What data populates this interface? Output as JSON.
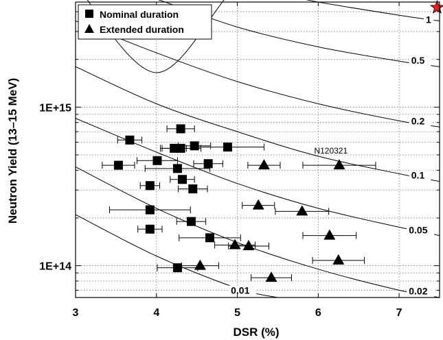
{
  "chart_data": {
    "type": "scatter",
    "xlabel": "DSR (%)",
    "ylabel": "Neutron Yield (13–15 MeV)",
    "xlim": [
      3,
      7.5
    ],
    "ylim": [
      63000000000000.0,
      4600000000000000.0
    ],
    "yscale": "log",
    "grid": true,
    "legend_position": "top-left",
    "x_ticks": [
      {
        "value": 3,
        "label": "3"
      },
      {
        "value": 4,
        "label": "4"
      },
      {
        "value": 5,
        "label": "5"
      },
      {
        "value": 6,
        "label": "6"
      },
      {
        "value": 7,
        "label": "7"
      }
    ],
    "y_ticks": [
      {
        "value": 100000000000000.0,
        "label": "1E+14"
      },
      {
        "value": 1000000000000000.0,
        "label": "1E+15"
      }
    ],
    "series": [
      {
        "name": "Nominal duration",
        "marker": "square",
        "points": [
          {
            "x": 3.67,
            "y": 620000000000000.0,
            "xerr": 0.15
          },
          {
            "x": 4.3,
            "y": 730000000000000.0,
            "xerr": 0.17
          },
          {
            "x": 4.22,
            "y": 550000000000000.0,
            "xerr": 0.15
          },
          {
            "x": 4.3,
            "y": 550000000000000.0,
            "xerr": 0.25
          },
          {
            "x": 4.47,
            "y": 570000000000000.0,
            "xerr": 0.2
          },
          {
            "x": 4.88,
            "y": 560000000000000.0,
            "xerr": 0.45
          },
          {
            "x": 3.53,
            "y": 430000000000000.0,
            "xerr": 0.2
          },
          {
            "x": 4.01,
            "y": 460000000000000.0,
            "xerr": 0.25
          },
          {
            "x": 4.26,
            "y": 410000000000000.0,
            "xerr": 0.4
          },
          {
            "x": 4.64,
            "y": 440000000000000.0,
            "xerr": 0.18
          },
          {
            "x": 3.92,
            "y": 320000000000000.0,
            "xerr": 0.12
          },
          {
            "x": 4.32,
            "y": 350000000000000.0,
            "xerr": 0.15
          },
          {
            "x": 4.45,
            "y": 305000000000000.0,
            "xerr": 0.18
          },
          {
            "x": 3.92,
            "y": 225000000000000.0,
            "xerr": 0.5
          },
          {
            "x": 4.43,
            "y": 190000000000000.0,
            "xerr": 0.18
          },
          {
            "x": 3.92,
            "y": 170000000000000.0,
            "xerr": 0.15
          },
          {
            "x": 4.66,
            "y": 150000000000000.0,
            "xerr": 0.38
          },
          {
            "x": 4.26,
            "y": 97000000000000.0,
            "xerr": 0.25
          }
        ]
      },
      {
        "name": "Extended duration",
        "marker": "triangle",
        "points": [
          {
            "x": 5.33,
            "y": 430000000000000.0,
            "xerr": 0.2
          },
          {
            "x": 6.26,
            "y": 430000000000000.0,
            "xerr": 0.45
          },
          {
            "x": 5.26,
            "y": 240000000000000.0,
            "xerr": 0.2
          },
          {
            "x": 5.8,
            "y": 220000000000000.0,
            "xerr": 0.33
          },
          {
            "x": 6.14,
            "y": 155000000000000.0,
            "xerr": 0.33
          },
          {
            "x": 4.97,
            "y": 135000000000000.0,
            "xerr": 0.25
          },
          {
            "x": 5.14,
            "y": 133000000000000.0,
            "xerr": 0.25
          },
          {
            "x": 6.25,
            "y": 108000000000000.0,
            "xerr": 0.32
          },
          {
            "x": 4.54,
            "y": 100000000000000.0,
            "xerr": 0.23
          },
          {
            "x": 5.42,
            "y": 84000000000000.0,
            "xerr": 0.25
          }
        ]
      }
    ],
    "contours": [
      {
        "label": "1",
        "points": [
          [
            3.0,
            6000000000000000.0
          ],
          [
            4.0,
            1650000000000000.0
          ],
          [
            5.0,
            5800000000000000.0
          ],
          [
            5.5,
            5200000000000000.0
          ],
          [
            6.0,
            4600000000000000.0
          ],
          [
            7.0,
            3800000000000000.0
          ],
          [
            7.5,
            3500000000000000.0
          ]
        ]
      },
      {
        "label": "0.5",
        "points": [
          [
            3.0,
            7000000000000000.0
          ],
          [
            4.0,
            4800000000000000.0
          ],
          [
            5.0,
            3200000000000000.0
          ],
          [
            6.0,
            2400000000000000.0
          ],
          [
            7.0,
            1950000000000000.0
          ],
          [
            7.5,
            1800000000000000.0
          ]
        ]
      },
      {
        "label": "0.2",
        "points": [
          [
            3.0,
            3500000000000000.0
          ],
          [
            4.0,
            2200000000000000.0
          ],
          [
            5.0,
            1450000000000000.0
          ],
          [
            6.0,
            1050000000000000.0
          ],
          [
            7.0,
            820000000000000.0
          ],
          [
            7.5,
            750000000000000.0
          ]
        ]
      },
      {
        "label": "0.1",
        "points": [
          [
            3.0,
            1800000000000000.0
          ],
          [
            4.0,
            1050000000000000.0
          ],
          [
            5.0,
            700000000000000.0
          ],
          [
            6.0,
            490000000000000.0
          ],
          [
            7.0,
            380000000000000.0
          ],
          [
            7.5,
            340000000000000.0
          ]
        ]
      },
      {
        "label": "0.05",
        "points": [
          [
            3.0,
            850000000000000.0
          ],
          [
            4.0,
            520000000000000.0
          ],
          [
            5.0,
            330000000000000.0
          ],
          [
            6.0,
            230000000000000.0
          ],
          [
            7.0,
            175000000000000.0
          ],
          [
            7.5,
            155000000000000.0
          ]
        ]
      },
      {
        "label": "0.02",
        "points": [
          [
            3.0,
            420000000000000.0
          ],
          [
            4.0,
            230000000000000.0
          ],
          [
            5.0,
            140000000000000.0
          ],
          [
            6.0,
            95000000000000.0
          ],
          [
            7.0,
            70000000000000.0
          ],
          [
            7.5,
            63000000000000.0
          ]
        ]
      },
      {
        "label": "0.01",
        "points": [
          [
            3.0,
            210000000000000.0
          ],
          [
            4.0,
            115000000000000.0
          ],
          [
            5.0,
            72000000000000.0
          ],
          [
            5.5,
            63000000000000.0
          ]
        ]
      }
    ],
    "contour_labels": [
      {
        "label": "1",
        "x": 7.33,
        "y": 3400000000000000.0
      },
      {
        "label": "0.5",
        "x": 7.15,
        "y": 1880000000000000.0
      },
      {
        "label": "0.2",
        "x": 7.15,
        "y": 780000000000000.0
      },
      {
        "label": "0.1",
        "x": 7.15,
        "y": 355000000000000.0
      },
      {
        "label": "0.05",
        "x": 7.12,
        "y": 160000000000000.0
      },
      {
        "label": "0.02",
        "x": 7.12,
        "y": 66000000000000.0
      },
      {
        "label": "0.01",
        "x": 4.92,
        "y": 66500000000000.0
      }
    ],
    "annotations": [
      {
        "text": "N120321",
        "x": 5.95,
        "y": 510000000000000.0
      }
    ],
    "highlight_marker": {
      "shape": "star",
      "x": 7.47,
      "y": 4250000000000000.0,
      "color": "#e8201c"
    },
    "colors": {
      "series": "#000000",
      "grid": "#6e6e6e",
      "star": "#e8201c"
    }
  }
}
